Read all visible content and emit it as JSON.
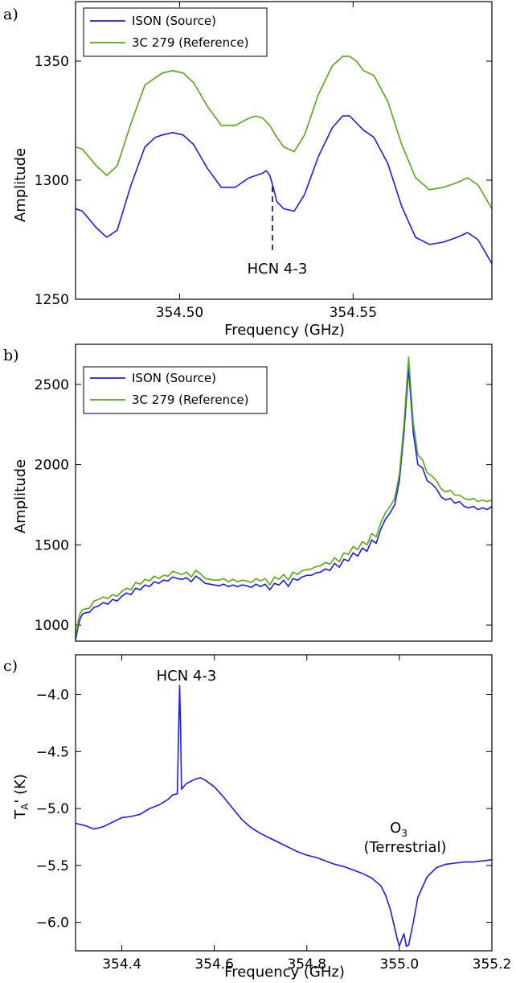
{
  "colors": {
    "source": "#1a1aff",
    "reference": "#55aa11",
    "axis": "#000000"
  },
  "panels": [
    {
      "letter": "a)",
      "xlabel": "Frequency (GHz)",
      "ylabel": "Amplitude",
      "annotation": "HCN 4-3"
    },
    {
      "letter": "b)",
      "xlabel": "",
      "ylabel": "Amplitude"
    },
    {
      "letter": "c)",
      "xlabel": "Frequency (GHz)",
      "ylabel": "T_A' (K)",
      "annotation_hcn": "HCN 4-3",
      "annotation_o3_main": "O",
      "annotation_o3_sub": "3",
      "annotation_o3_note": "(Terrestrial)"
    }
  ],
  "chart_data": [
    {
      "type": "line",
      "xlim": [
        354.47,
        354.59
      ],
      "ylim": [
        1250,
        1375
      ],
      "xticks": [
        354.5,
        354.55
      ],
      "xtick_labels": [
        "354.50",
        "354.55"
      ],
      "yticks": [
        1250,
        1300,
        1350
      ],
      "ytick_labels": [
        "1250",
        "1300",
        "1350"
      ],
      "legend": "top-left",
      "series": [
        {
          "name": "ISON (Source)",
          "color_key": "source",
          "x": [
            354.47,
            354.472,
            354.476,
            354.479,
            354.482,
            354.486,
            354.49,
            354.493,
            354.495,
            354.498,
            354.501,
            354.504,
            354.508,
            354.512,
            354.516,
            354.52,
            354.522,
            354.524,
            354.525,
            354.526,
            354.527,
            354.528,
            354.53,
            354.533,
            354.536,
            354.54,
            354.544,
            354.547,
            354.549,
            354.551,
            354.553,
            354.556,
            354.56,
            354.564,
            354.568,
            354.572,
            354.576,
            354.58,
            354.583,
            354.586,
            354.59
          ],
          "y": [
            1288,
            1287,
            1280,
            1276,
            1279,
            1298,
            1314,
            1318,
            1319,
            1320,
            1319,
            1315,
            1305,
            1297,
            1297,
            1301,
            1302,
            1303,
            1304,
            1302,
            1297,
            1291,
            1288,
            1287,
            1294,
            1310,
            1322,
            1327,
            1327,
            1324,
            1321,
            1318,
            1307,
            1289,
            1276,
            1273,
            1274,
            1276,
            1278,
            1275,
            1265
          ]
        },
        {
          "name": "3C 279 (Reference)",
          "color_key": "reference",
          "x": [
            354.47,
            354.472,
            354.476,
            354.479,
            354.482,
            354.486,
            354.49,
            354.493,
            354.495,
            354.498,
            354.501,
            354.504,
            354.508,
            354.512,
            354.516,
            354.52,
            354.522,
            354.524,
            354.526,
            354.528,
            354.53,
            354.533,
            354.536,
            354.54,
            354.544,
            354.547,
            354.549,
            354.551,
            354.553,
            354.556,
            354.56,
            354.564,
            354.568,
            354.572,
            354.576,
            354.58,
            354.583,
            354.586,
            354.59
          ],
          "y": [
            1314,
            1313,
            1306,
            1302,
            1306,
            1324,
            1340,
            1343,
            1345,
            1346,
            1345,
            1341,
            1331,
            1323,
            1323,
            1326,
            1327,
            1326,
            1323,
            1318,
            1314,
            1312,
            1319,
            1336,
            1348,
            1352,
            1352,
            1350,
            1346,
            1344,
            1333,
            1315,
            1301,
            1296,
            1297,
            1299,
            1301,
            1298,
            1288
          ]
        }
      ]
    },
    {
      "type": "line",
      "xlim": [
        354.3,
        355.2
      ],
      "ylim": [
        900,
        2750
      ],
      "yticks": [
        1000,
        1500,
        2000,
        2500
      ],
      "ytick_labels": [
        "1000",
        "1500",
        "2000",
        "2500"
      ],
      "legend": "top-left",
      "series": [
        {
          "name": "ISON (Source)",
          "color_key": "source",
          "x": [
            354.3,
            354.303,
            354.306,
            354.31,
            354.315,
            354.32,
            354.33,
            354.34,
            354.35,
            354.36,
            354.37,
            354.38,
            354.39,
            354.4,
            354.41,
            354.42,
            354.43,
            354.44,
            354.45,
            354.46,
            354.47,
            354.48,
            354.49,
            354.5,
            354.51,
            354.52,
            354.53,
            354.54,
            354.55,
            354.56,
            354.57,
            354.58,
            354.59,
            354.6,
            354.61,
            354.62,
            354.63,
            354.64,
            354.65,
            354.66,
            354.67,
            354.68,
            354.69,
            354.7,
            354.71,
            354.72,
            354.73,
            354.74,
            354.75,
            354.76,
            354.77,
            354.78,
            354.79,
            354.8,
            354.81,
            354.82,
            354.83,
            354.84,
            354.85,
            354.86,
            354.87,
            354.88,
            354.89,
            354.9,
            354.91,
            354.92,
            354.93,
            354.94,
            354.95,
            354.96,
            354.97,
            354.98,
            354.99,
            355.0,
            355.01,
            355.015,
            355.02,
            355.025,
            355.03,
            355.04,
            355.05,
            355.06,
            355.07,
            355.08,
            355.09,
            355.1,
            355.11,
            355.12,
            355.13,
            355.14,
            355.15,
            355.16,
            355.17,
            355.18,
            355.19,
            355.2
          ],
          "y": [
            910,
            950,
            1000,
            1040,
            1070,
            1075,
            1080,
            1110,
            1120,
            1140,
            1130,
            1160,
            1150,
            1180,
            1200,
            1190,
            1230,
            1220,
            1250,
            1240,
            1270,
            1260,
            1280,
            1275,
            1300,
            1290,
            1285,
            1295,
            1270,
            1305,
            1285,
            1260,
            1255,
            1250,
            1245,
            1255,
            1240,
            1250,
            1240,
            1250,
            1245,
            1235,
            1255,
            1240,
            1255,
            1220,
            1260,
            1250,
            1280,
            1240,
            1290,
            1280,
            1300,
            1310,
            1310,
            1325,
            1330,
            1350,
            1340,
            1385,
            1360,
            1410,
            1400,
            1450,
            1430,
            1480,
            1460,
            1530,
            1510,
            1600,
            1660,
            1700,
            1750,
            1900,
            2200,
            2400,
            2600,
            2400,
            2200,
            2000,
            1980,
            1900,
            1880,
            1850,
            1800,
            1780,
            1790,
            1760,
            1770,
            1740,
            1730,
            1740,
            1720,
            1730,
            1720,
            1740
          ]
        },
        {
          "name": "3C 279 (Reference)",
          "color_key": "reference",
          "x": [
            354.3,
            354.303,
            354.306,
            354.31,
            354.315,
            354.32,
            354.33,
            354.34,
            354.35,
            354.36,
            354.37,
            354.38,
            354.39,
            354.4,
            354.41,
            354.42,
            354.43,
            354.44,
            354.45,
            354.46,
            354.47,
            354.48,
            354.49,
            354.5,
            354.51,
            354.52,
            354.53,
            354.54,
            354.55,
            354.56,
            354.57,
            354.58,
            354.59,
            354.6,
            354.61,
            354.62,
            354.63,
            354.64,
            354.65,
            354.66,
            354.67,
            354.68,
            354.69,
            354.7,
            354.71,
            354.72,
            354.73,
            354.74,
            354.75,
            354.76,
            354.77,
            354.78,
            354.79,
            354.8,
            354.81,
            354.82,
            354.83,
            354.84,
            354.85,
            354.86,
            354.87,
            354.88,
            354.89,
            354.9,
            354.91,
            354.92,
            354.93,
            354.94,
            354.95,
            354.96,
            354.97,
            354.98,
            354.99,
            355.0,
            355.01,
            355.015,
            355.02,
            355.025,
            355.03,
            355.04,
            355.05,
            355.06,
            355.07,
            355.08,
            355.09,
            355.1,
            355.11,
            355.12,
            355.13,
            355.14,
            355.15,
            355.16,
            355.17,
            355.18,
            355.19,
            355.2
          ],
          "y": [
            930,
            975,
            1030,
            1075,
            1095,
            1100,
            1105,
            1150,
            1160,
            1175,
            1165,
            1190,
            1180,
            1210,
            1230,
            1220,
            1265,
            1255,
            1285,
            1275,
            1305,
            1290,
            1310,
            1305,
            1335,
            1325,
            1315,
            1330,
            1300,
            1340,
            1320,
            1290,
            1285,
            1280,
            1280,
            1290,
            1270,
            1285,
            1270,
            1280,
            1275,
            1265,
            1290,
            1275,
            1290,
            1250,
            1300,
            1285,
            1315,
            1280,
            1330,
            1315,
            1340,
            1345,
            1350,
            1365,
            1370,
            1390,
            1380,
            1420,
            1395,
            1450,
            1440,
            1490,
            1470,
            1520,
            1500,
            1570,
            1550,
            1640,
            1700,
            1740,
            1790,
            1940,
            2250,
            2460,
            2670,
            2460,
            2260,
            2060,
            2030,
            1950,
            1930,
            1900,
            1850,
            1830,
            1840,
            1810,
            1810,
            1790,
            1780,
            1790,
            1770,
            1780,
            1770,
            1780
          ]
        }
      ]
    },
    {
      "type": "line",
      "xlim": [
        354.3,
        355.2
      ],
      "ylim": [
        -6.25,
        -3.65
      ],
      "xticks": [
        354.4,
        354.6,
        354.8,
        355.0,
        355.2
      ],
      "xtick_labels": [
        "354.4",
        "354.6",
        "354.8",
        "355.0",
        "355.2"
      ],
      "yticks": [
        -6.0,
        -5.5,
        -5.0,
        -4.5,
        -4.0
      ],
      "ytick_labels": [
        "−6.0",
        "−5.5",
        "−5.0",
        "−4.5",
        "−4.0"
      ],
      "series": [
        {
          "color_key": "source",
          "x": [
            354.3,
            354.32,
            354.34,
            354.36,
            354.38,
            354.4,
            354.42,
            354.44,
            354.46,
            354.48,
            354.5,
            354.51,
            354.52,
            354.523,
            354.525,
            354.527,
            354.529,
            354.531,
            354.54,
            354.56,
            354.57,
            354.58,
            354.6,
            354.62,
            354.64,
            354.66,
            354.68,
            354.7,
            354.72,
            354.74,
            354.76,
            354.78,
            354.8,
            354.82,
            354.84,
            354.86,
            354.88,
            354.9,
            354.92,
            354.94,
            354.96,
            354.97,
            354.98,
            354.99,
            354.995,
            355.0,
            355.005,
            355.01,
            355.015,
            355.02,
            355.03,
            355.04,
            355.06,
            355.08,
            355.1,
            355.12,
            355.14,
            355.16,
            355.18,
            355.2
          ],
          "y": [
            -5.13,
            -5.15,
            -5.18,
            -5.16,
            -5.12,
            -5.08,
            -5.07,
            -5.05,
            -5.0,
            -4.97,
            -4.92,
            -4.88,
            -4.87,
            -4.3,
            -3.92,
            -4.3,
            -4.83,
            -4.82,
            -4.78,
            -4.74,
            -4.73,
            -4.75,
            -4.81,
            -4.9,
            -5.0,
            -5.1,
            -5.17,
            -5.22,
            -5.26,
            -5.3,
            -5.34,
            -5.38,
            -5.41,
            -5.43,
            -5.46,
            -5.49,
            -5.51,
            -5.54,
            -5.57,
            -5.61,
            -5.68,
            -5.76,
            -5.88,
            -6.05,
            -6.14,
            -6.21,
            -6.15,
            -6.1,
            -6.21,
            -6.2,
            -6.0,
            -5.78,
            -5.6,
            -5.52,
            -5.49,
            -5.48,
            -5.47,
            -5.47,
            -5.46,
            -5.45
          ]
        }
      ]
    }
  ]
}
